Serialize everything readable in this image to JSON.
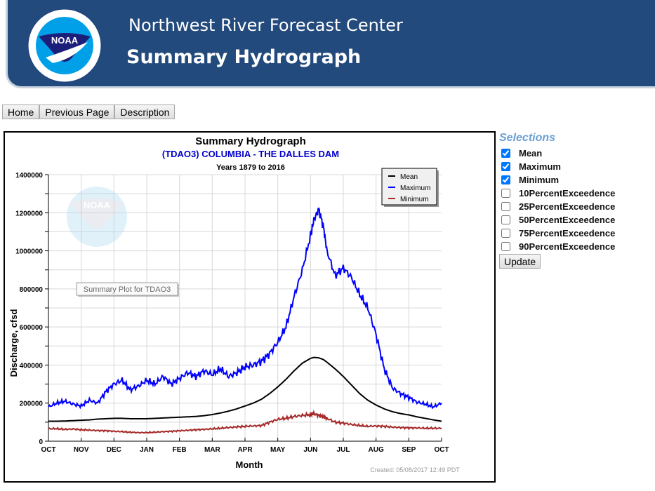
{
  "banner": {
    "org": "Northwest River Forecast Center",
    "title": "Summary Hydrograph",
    "logo_text": "NOAA"
  },
  "nav": {
    "home": "Home",
    "previous": "Previous Page",
    "description": "Description"
  },
  "selections": {
    "title": "Selections",
    "items": [
      {
        "label": "Mean",
        "checked": true
      },
      {
        "label": "Maximum",
        "checked": true
      },
      {
        "label": "Minimum",
        "checked": true
      },
      {
        "label": "10PercentExceedence",
        "checked": false
      },
      {
        "label": "25PercentExceedence",
        "checked": false
      },
      {
        "label": "50PercentExceedence",
        "checked": false
      },
      {
        "label": "75PercentExceedence",
        "checked": false
      },
      {
        "label": "90PercentExceedence",
        "checked": false
      }
    ],
    "update_label": "Update"
  },
  "chart_data": {
    "type": "line",
    "title": "Summary Hydrograph",
    "subtitle": "(TDAO3) COLUMBIA - THE DALLES DAM",
    "subtitle2": "Years 1879 to 2016",
    "xlabel": "Month",
    "ylabel": "Discharge, cfsd",
    "ylim": [
      0,
      1400000
    ],
    "yticks": [
      0,
      200000,
      400000,
      600000,
      800000,
      1000000,
      1200000,
      1400000
    ],
    "ytick_labels": [
      "0",
      "200000",
      "400000",
      "600000",
      "800000",
      "1000000",
      "1200000",
      "1400000"
    ],
    "x_unit": "month index from Oct 1 (0 = OCT, 12 = following OCT)",
    "xlim": [
      0,
      12
    ],
    "xtick_labels": [
      "OCT",
      "NOV",
      "DEC",
      "JAN",
      "FEB",
      "MAR",
      "APR",
      "MAY",
      "JUN",
      "JUL",
      "AUG",
      "SEP",
      "OCT"
    ],
    "grid": true,
    "legend_position": "top-right",
    "watermark": "NOAA",
    "tooltip": "Summary Plot for TDAO3",
    "created": "Created: 05/08/2017 12:49 PDT",
    "x": [
      0,
      0.25,
      0.5,
      0.75,
      1,
      1.25,
      1.5,
      1.75,
      2,
      2.25,
      2.5,
      2.75,
      3,
      3.25,
      3.5,
      3.75,
      4,
      4.25,
      4.5,
      4.75,
      5,
      5.25,
      5.5,
      5.75,
      6,
      6.25,
      6.5,
      6.75,
      7,
      7.25,
      7.5,
      7.75,
      8,
      8.1,
      8.25,
      8.4,
      8.5,
      8.75,
      9,
      9.25,
      9.5,
      9.75,
      10,
      10.25,
      10.5,
      10.75,
      11,
      11.25,
      11.5,
      11.75,
      12
    ],
    "series": [
      {
        "name": "Mean",
        "color": "#000000",
        "values": [
          105000,
          105000,
          106000,
          108000,
          110000,
          112000,
          116000,
          118000,
          120000,
          120000,
          118000,
          118000,
          118000,
          120000,
          122000,
          124000,
          126000,
          128000,
          130000,
          134000,
          140000,
          148000,
          158000,
          170000,
          185000,
          200000,
          220000,
          250000,
          285000,
          325000,
          370000,
          410000,
          435000,
          440000,
          438000,
          428000,
          415000,
          380000,
          340000,
          295000,
          250000,
          215000,
          190000,
          170000,
          155000,
          145000,
          138000,
          128000,
          120000,
          112000,
          105000
        ]
      },
      {
        "name": "Maximum",
        "color": "#0000ff",
        "values": [
          180000,
          200000,
          210000,
          195000,
          185000,
          215000,
          200000,
          260000,
          300000,
          320000,
          270000,
          290000,
          320000,
          300000,
          340000,
          300000,
          330000,
          360000,
          340000,
          370000,
          350000,
          380000,
          340000,
          360000,
          390000,
          400000,
          420000,
          460000,
          520000,
          600000,
          760000,
          900000,
          1080000,
          1160000,
          1220000,
          1120000,
          1000000,
          870000,
          910000,
          860000,
          770000,
          700000,
          560000,
          380000,
          280000,
          250000,
          230000,
          205000,
          195000,
          180000,
          200000
        ]
      },
      {
        "name": "Minimum",
        "color": "#a52a2a",
        "values": [
          65000,
          66000,
          62000,
          64000,
          60000,
          58000,
          56000,
          55000,
          52000,
          50000,
          47000,
          45000,
          45000,
          47000,
          50000,
          52000,
          55000,
          57000,
          60000,
          62000,
          65000,
          68000,
          72000,
          75000,
          78000,
          80000,
          82000,
          100000,
          115000,
          120000,
          130000,
          135000,
          140000,
          145000,
          135000,
          128000,
          120000,
          100000,
          95000,
          88000,
          82000,
          78000,
          80000,
          78000,
          74000,
          72000,
          70000,
          70000,
          68000,
          68000,
          68000
        ]
      }
    ]
  }
}
